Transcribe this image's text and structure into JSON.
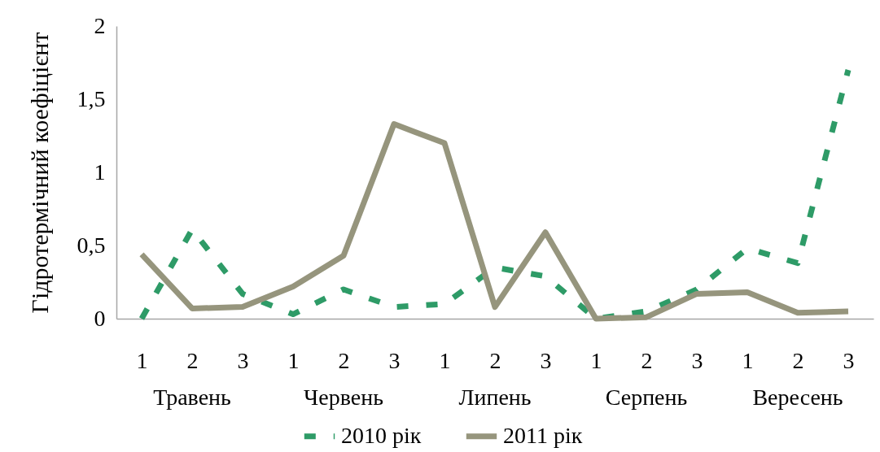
{
  "chart_data": {
    "type": "line",
    "ylabel": "Гідротермічний коефіцієнт",
    "categories": [
      "1",
      "2",
      "3",
      "1",
      "2",
      "3",
      "1",
      "2",
      "3",
      "1",
      "2",
      "3",
      "1",
      "2",
      "3"
    ],
    "annotations": [
      "Травень",
      "Червень",
      "Липень",
      "Серпень",
      "Вересень"
    ],
    "series": [
      {
        "name": "2010 рік",
        "color": "#2e9b67",
        "line_style": "dashed",
        "values": [
          0.0,
          0.61,
          0.17,
          0.03,
          0.2,
          0.08,
          0.1,
          0.35,
          0.29,
          0.0,
          0.05,
          0.2,
          0.48,
          0.38,
          1.7
        ]
      },
      {
        "name": "2011 рік",
        "color": "#96957d",
        "line_style": "solid",
        "values": [
          0.44,
          0.07,
          0.08,
          0.22,
          0.43,
          1.33,
          1.2,
          0.08,
          0.59,
          0.0,
          0.01,
          0.17,
          0.18,
          0.04,
          0.05
        ]
      }
    ],
    "ylim": [
      0,
      2
    ],
    "yticks": [
      0,
      {
        "value": 0.5,
        "label": "0,5"
      },
      1,
      {
        "value": 1.5,
        "label": "1,5"
      },
      2
    ],
    "grid": false,
    "legend": "bottom",
    "marker": "none"
  }
}
